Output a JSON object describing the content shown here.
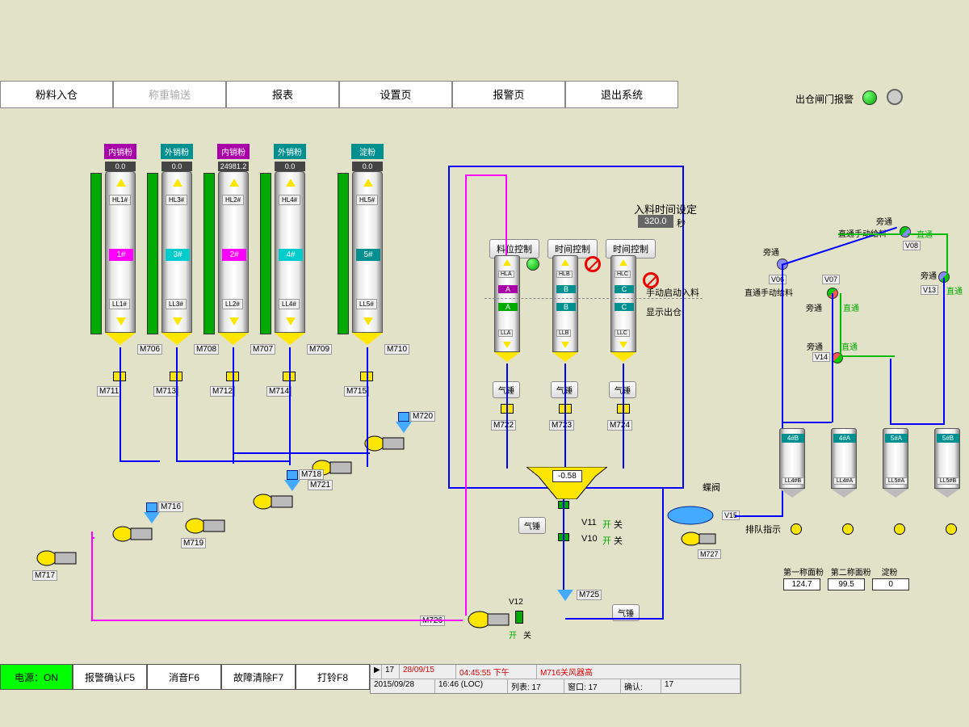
{
  "colors": {
    "bg": "#e2e2c9",
    "blue": "#0000ff",
    "magenta": "#ff00ff",
    "green": "#00aa00",
    "yellow": "#ffe600",
    "teal": "#009090",
    "cyan": "#00cccc",
    "darkmag": "#aa00aa"
  },
  "nav": {
    "btns": [
      "粉料入仓",
      "称重输送",
      "报表",
      "设置页",
      "报警页",
      "退出系统"
    ],
    "disabled_idx": 1,
    "alarm_gate_label": "出仓闸门报警"
  },
  "silos": [
    {
      "label": "内销粉",
      "label_bg": "#aa00aa",
      "top_val": "0.0",
      "hl": "HL1#",
      "ll": "LL1#",
      "tag": "1#",
      "tag_bg": "#ff00ff",
      "m1": "M706",
      "m2": "M711"
    },
    {
      "label": "外销粉",
      "label_bg": "#009090",
      "top_val": "0.0",
      "hl": "HL3#",
      "ll": "LL3#",
      "tag": "3#",
      "tag_bg": "#00cccc",
      "m1": "M708",
      "m2": "M713"
    },
    {
      "label": "内销粉",
      "label_bg": "#aa00aa",
      "top_val": "24981.2",
      "hl": "HL2#",
      "ll": "LL2#",
      "tag": "2#",
      "tag_bg": "#ff00ff",
      "m1": "M707",
      "m2": "M712"
    },
    {
      "label": "外销粉",
      "label_bg": "#009090",
      "top_val": "0.0",
      "hl": "HL4#",
      "ll": "LL4#",
      "tag": "4#",
      "tag_bg": "#00cccc",
      "m1": "M709",
      "m2": "M714"
    },
    {
      "label": "淀粉",
      "label_bg": "#009090",
      "top_val": "0.0",
      "hl": "HL5#",
      "ll": "LL5#",
      "tag": "5#",
      "tag_bg": "#009090",
      "m1": "M710",
      "m2": "M715"
    }
  ],
  "mid_silos": [
    {
      "ctrl": "料位控制",
      "hl": "HLA",
      "a": "A",
      "a_bg": "#aa00aa",
      "b": "A",
      "b_bg": "#00aa00",
      "ll": "LLA",
      "m": "M722",
      "ind": "green"
    },
    {
      "ctrl": "时间控制",
      "hl": "HLB",
      "a": "B",
      "a_bg": "#009090",
      "b": "B",
      "b_bg": "#009090",
      "ll": "LLB",
      "m": "M723",
      "ind": "red"
    },
    {
      "ctrl": "时间控制",
      "hl": "HLC",
      "a": "C",
      "a_bg": "#009090",
      "b": "C",
      "b_bg": "#009090",
      "ll": "LLC",
      "m": "M724",
      "ind": "red"
    }
  ],
  "feed_time": {
    "label": "入料时间设定",
    "value": "320.0",
    "unit": "秒"
  },
  "mid_labels": {
    "manual": "手动启动入料",
    "display": "显示出仓",
    "hammer": "气锤"
  },
  "pumps": {
    "M716": "M716",
    "M717": "M717",
    "M718": "M718",
    "M719": "M719",
    "M720": "M720",
    "M721": "M721"
  },
  "weigh": {
    "value": "-0.58",
    "hammer": "气锤",
    "v11": "V11",
    "v10": "V10",
    "open": "开",
    "close": "关"
  },
  "bottom_pump": {
    "m725": "M725",
    "m726": "M726",
    "v12": "V12",
    "hammer": "气锤",
    "open": "开",
    "close": "关"
  },
  "butterfly": {
    "label": "蝶阀",
    "v15": "V15",
    "m727": "M727"
  },
  "valves": {
    "bypass": "旁通",
    "through": "直通",
    "manual_feed": "直通手动给料",
    "v06": "V06",
    "v07": "V07",
    "v08": "V08",
    "v13": "V13",
    "v14": "V14"
  },
  "out_silos": [
    {
      "tag": "4#B",
      "tag_bg": "#009090",
      "ll": "LL4#B"
    },
    {
      "tag": "4#A",
      "tag_bg": "#009090",
      "ll": "LL4#A"
    },
    {
      "tag": "5#A",
      "tag_bg": "#009090",
      "ll": "LL5#A"
    },
    {
      "tag": "5#B",
      "tag_bg": "#009090",
      "ll": "LL5#B"
    }
  ],
  "queue": {
    "label": "排队指示"
  },
  "weights": {
    "labels": [
      "第一称面粉",
      "第二称面粉",
      "淀粉"
    ],
    "values": [
      "124.7",
      "99.5",
      "0"
    ]
  },
  "bottom_bar": {
    "power": "电源：ON",
    "btns": [
      "报警确认F5",
      "消音F6",
      "故障清除F7",
      "打铃F8"
    ]
  },
  "status": {
    "row1": {
      "idx": "17",
      "date": "28/09/15",
      "time": "04:45:55 下午",
      "msg": "M716关风器高"
    },
    "row2": {
      "dt": "2015/09/28",
      "tm": "16:46 (LOC)",
      "list": "列表: 17",
      "win": "窗口: 17",
      "ack": "确认:",
      "ack_n": "17"
    }
  }
}
